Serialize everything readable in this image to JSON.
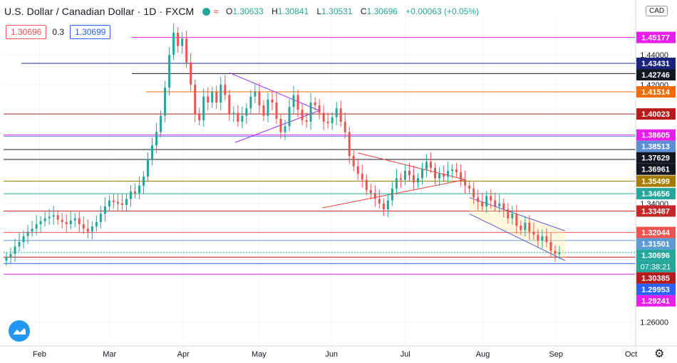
{
  "header": {
    "title": "U.S. Dollar / Canadian Dollar · 1D · FXCM",
    "ohlc": {
      "o_label": "O",
      "o": "1.30633",
      "h_label": "H",
      "h": "1.30841",
      "l_label": "L",
      "l": "1.30531",
      "c_label": "C",
      "c": "1.30696",
      "change": "+0.00063 (+0.05%)"
    },
    "currency": "CAD"
  },
  "bid_ask": {
    "bid": "1.30696",
    "spread": "0.3",
    "ask": "1.30699"
  },
  "icons": {
    "logo": "tradingview-logo-icon",
    "settings": "gear-icon",
    "visibility": "eye-icon",
    "indicator": "wave-icon"
  },
  "colors": {
    "up": "#26a69a",
    "down": "#ef5350",
    "channel": "#5b5bd6",
    "triangle": "#e53935",
    "flag": "#9b30ff"
  },
  "chart_data": {
    "type": "candlestick",
    "symbol": "USDCAD",
    "ylim": [
      1.245,
      1.465
    ],
    "y_ticks": [
      "1.26000",
      "1.34000",
      "1.42000",
      "1.44000"
    ],
    "x_ticks": [
      "Feb",
      "Mar",
      "Apr",
      "May",
      "Jun",
      "Jul",
      "Aug",
      "Sep",
      "Oct"
    ],
    "close_series": [
      1.3035,
      1.306,
      1.311,
      1.314,
      1.318,
      1.321,
      1.323,
      1.326,
      1.328,
      1.33,
      1.331,
      1.332,
      1.329,
      1.3275,
      1.326,
      1.3285,
      1.33,
      1.326,
      1.323,
      1.321,
      1.3245,
      1.3275,
      1.333,
      1.338,
      1.342,
      1.341,
      1.34,
      1.339,
      1.343,
      1.348,
      1.347,
      1.352,
      1.358,
      1.37,
      1.379,
      1.388,
      1.399,
      1.418,
      1.44,
      1.455,
      1.446,
      1.451,
      1.435,
      1.42,
      1.4,
      1.396,
      1.412,
      1.408,
      1.415,
      1.408,
      1.42,
      1.413,
      1.4,
      1.401,
      1.395,
      1.399,
      1.404,
      1.412,
      1.415,
      1.406,
      1.399,
      1.41,
      1.408,
      1.397,
      1.388,
      1.392,
      1.405,
      1.413,
      1.403,
      1.396,
      1.395,
      1.408,
      1.406,
      1.401,
      1.395,
      1.394,
      1.398,
      1.404,
      1.395,
      1.388,
      1.372,
      1.365,
      1.36,
      1.356,
      1.349,
      1.347,
      1.343,
      1.34,
      1.336,
      1.342,
      1.35,
      1.357,
      1.356,
      1.362,
      1.359,
      1.354,
      1.357,
      1.363,
      1.368,
      1.364,
      1.357,
      1.36,
      1.358,
      1.362,
      1.363,
      1.361,
      1.356,
      1.352,
      1.35,
      1.344,
      1.341,
      1.338,
      1.345,
      1.342,
      1.338,
      1.34,
      1.336,
      1.33,
      1.333,
      1.325,
      1.322,
      1.327,
      1.321,
      1.319,
      1.315,
      1.318,
      1.314,
      1.308,
      1.306,
      1.307
    ],
    "horizontal_levels": [
      "1.45177",
      "1.43431",
      "1.42746",
      "1.41514",
      "1.40023",
      "1.38605",
      "1.38513",
      "1.37629",
      "1.36961",
      "1.35499",
      "1.34656",
      "1.33487",
      "1.32044",
      "1.31501",
      "1.30696",
      "1.30385",
      "1.29953",
      "1.29241"
    ],
    "level_colors": [
      "#e91ee9",
      "#1a237e",
      "#131722",
      "#ef6c00",
      "#b71c1c",
      "#e91ee9",
      "#5c8fd6",
      "#131722",
      "#131722",
      "#a67c00",
      "#26a69a",
      "#c62828",
      "#ef5350",
      "#5b9bd5",
      "#26a69a",
      "#b71c1c",
      "#2962ff",
      "#e91ee9"
    ],
    "label_colors": [
      "#e91ee9",
      "#1a237e",
      "#131722",
      "#ef6c00",
      "#b71c1c",
      "#e91ee9",
      "#5c8fd6",
      "#131722",
      "#131722",
      "#a67c00",
      "#26a69a",
      "#c62828",
      "#ef5350",
      "#5b9bd5",
      "#26a69a",
      "#b71c1c",
      "#2962ff",
      "#e91ee9"
    ],
    "countdown": "07:38:21"
  }
}
